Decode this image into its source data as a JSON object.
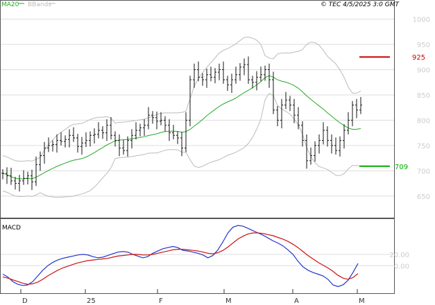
{
  "header": {
    "legend_ma": "MA20",
    "legend_bb": "BBands",
    "source": "© TEC 4/5/2025 3:0 GMT"
  },
  "colors": {
    "ma": "#22aa22",
    "bb": "#bbbbbb",
    "price": "#111111",
    "resistance": "#cc0000",
    "support": "#00aa00",
    "macd": "#2233cc",
    "signal": "#cc1111"
  },
  "chart_data": [
    {
      "type": "ohlc",
      "title": "",
      "y_ticks": [
        650,
        700,
        750,
        800,
        850,
        900,
        950,
        1000
      ],
      "ylim": [
        610,
        1035
      ],
      "x_labels": [
        "D",
        "25",
        "F",
        "M",
        "A",
        "M"
      ],
      "closes": [
        695,
        690,
        680,
        675,
        680,
        685,
        690,
        678,
        712,
        730,
        745,
        750,
        752,
        760,
        758,
        762,
        770,
        765,
        748,
        755,
        760,
        770,
        772,
        780,
        775,
        790,
        770,
        760,
        745,
        740,
        760,
        770,
        780,
        785,
        790,
        810,
        805,
        798,
        800,
        790,
        775,
        770,
        765,
        745,
        800,
        880,
        900,
        885,
        880,
        890,
        885,
        895,
        900,
        880,
        870,
        880,
        890,
        905,
        910,
        880,
        875,
        885,
        890,
        900,
        880,
        820,
        800,
        830,
        840,
        830,
        810,
        790,
        760,
        720,
        730,
        750,
        760,
        780,
        760,
        750,
        740,
        760,
        780,
        800,
        830,
        820,
        830
      ],
      "resistance": {
        "value": 925,
        "label": "925"
      },
      "support": {
        "value": 709,
        "label": "709"
      }
    },
    {
      "type": "line",
      "title": "MACD",
      "y_ticks": [
        0,
        20
      ],
      "series": [
        {
          "key": "macd",
          "values": [
            -15,
            -20,
            -28,
            -33,
            -35,
            -34,
            -28,
            -18,
            -8,
            0,
            6,
            10,
            13,
            15,
            17,
            19,
            20,
            19,
            16,
            14,
            15,
            18,
            21,
            24,
            25,
            24,
            20,
            17,
            14,
            16,
            22,
            26,
            30,
            32,
            34,
            32,
            27,
            26,
            24,
            22,
            19,
            14,
            18,
            28,
            42,
            58,
            68,
            71,
            70,
            66,
            62,
            58,
            54,
            49,
            44,
            40,
            35,
            28,
            20,
            8,
            -2,
            -8,
            -12,
            -15,
            -18,
            -24,
            -34,
            -37,
            -34,
            -26,
            -12,
            4
          ]
        },
        {
          "key": "signal",
          "values": [
            -20,
            -22,
            -25,
            -28,
            -31,
            -33,
            -32,
            -29,
            -24,
            -18,
            -13,
            -8,
            -4,
            -1,
            2,
            5,
            7,
            9,
            10,
            11,
            12,
            13,
            15,
            17,
            18,
            19,
            20,
            20,
            19,
            19,
            20,
            22,
            24,
            26,
            28,
            29,
            29,
            28,
            27,
            26,
            24,
            22,
            21,
            23,
            27,
            33,
            40,
            47,
            52,
            56,
            58,
            58,
            57,
            55,
            53,
            50,
            47,
            43,
            38,
            32,
            25,
            18,
            12,
            6,
            1,
            -4,
            -10,
            -17,
            -22,
            -24,
            -21,
            -14
          ]
        }
      ]
    }
  ]
}
